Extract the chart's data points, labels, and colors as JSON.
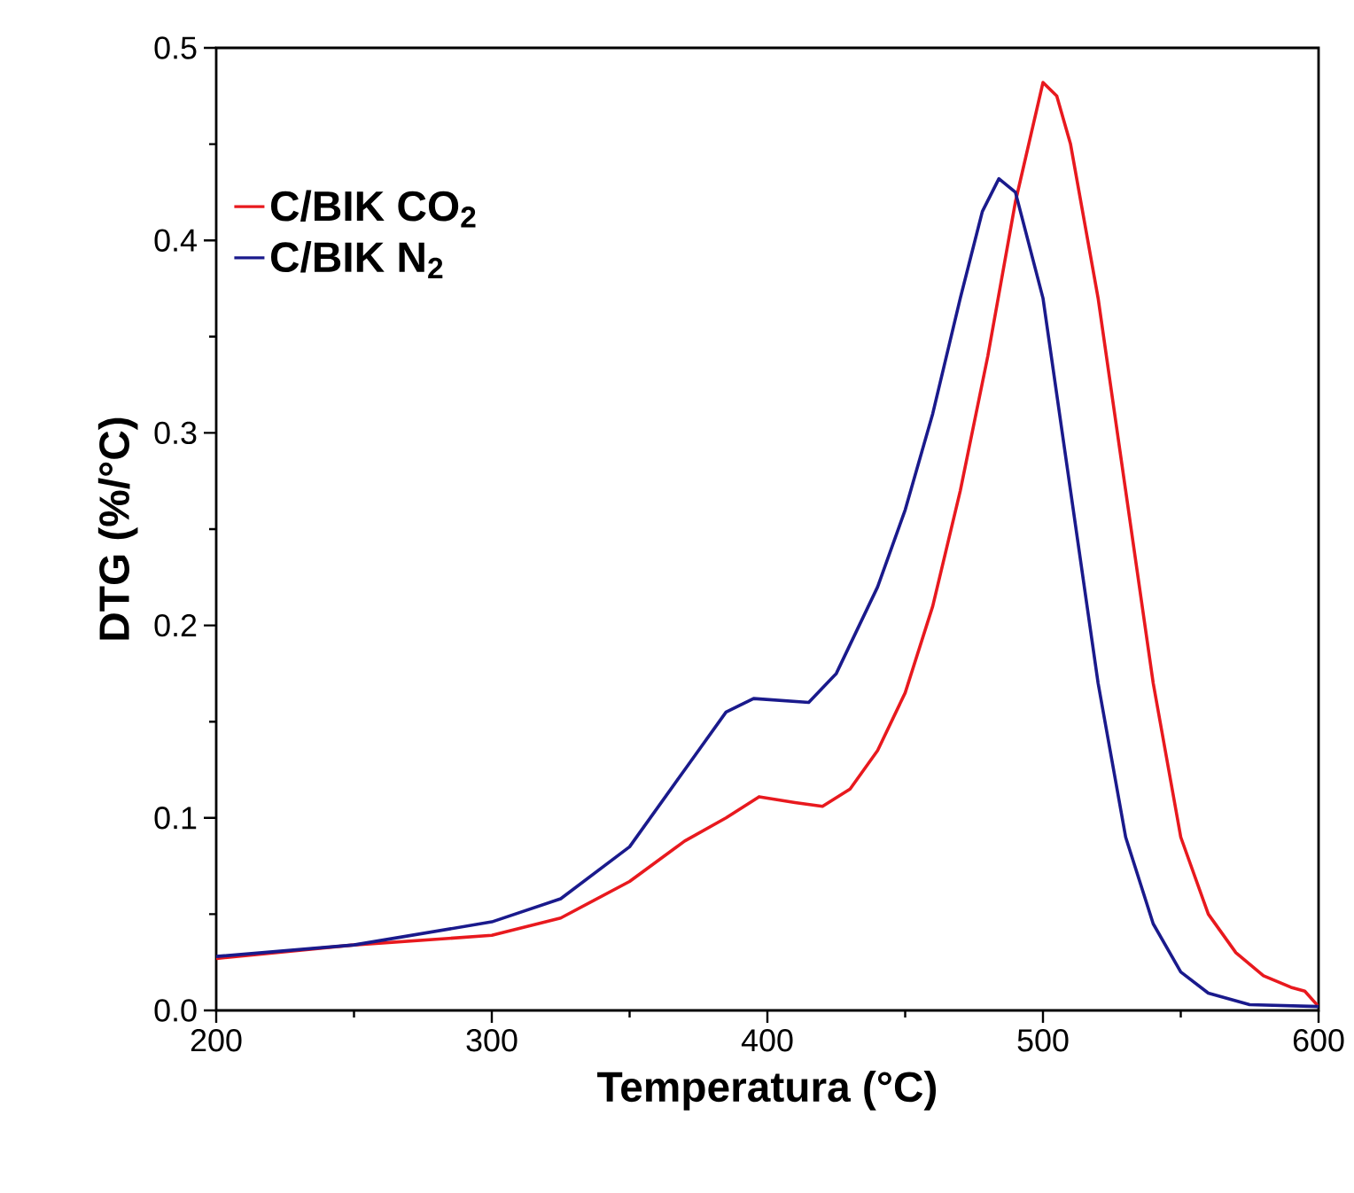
{
  "chart_data": {
    "type": "line",
    "xlabel": "Temperatura (°C)",
    "ylabel": "DTG (%/°C)",
    "xlim": [
      200,
      600
    ],
    "xticks": [
      200,
      300,
      400,
      500,
      600
    ],
    "ylim": [
      0,
      0.5
    ],
    "yticks": [
      {
        "value": 0,
        "label": "0.0"
      },
      0.1,
      0.2,
      0.3,
      0.4,
      0.5
    ],
    "legend": "top left",
    "grid": false,
    "marker": "none",
    "line_style": "solid",
    "series": [
      {
        "name": "C/BIK CO$_{2}$",
        "color": "#e8191e",
        "x": [
          200,
          250,
          300,
          325,
          350,
          370,
          385,
          397,
          410,
          420,
          430,
          440,
          450,
          460,
          470,
          480,
          490,
          500,
          505,
          510,
          520,
          530,
          540,
          550,
          560,
          570,
          580,
          590,
          595,
          600
        ],
        "values": [
          0.027,
          0.034,
          0.039,
          0.048,
          0.067,
          0.088,
          0.1,
          0.111,
          0.108,
          0.106,
          0.115,
          0.135,
          0.165,
          0.21,
          0.27,
          0.34,
          0.42,
          0.482,
          0.475,
          0.45,
          0.37,
          0.27,
          0.17,
          0.09,
          0.05,
          0.03,
          0.018,
          0.012,
          0.01,
          0.002
        ]
      },
      {
        "name": "C/BIK N$_{2}$",
        "color": "#1a1a8c",
        "x": [
          200,
          250,
          300,
          325,
          350,
          370,
          385,
          395,
          405,
          415,
          425,
          440,
          450,
          460,
          470,
          478,
          484,
          490,
          500,
          510,
          520,
          530,
          540,
          550,
          560,
          575,
          600
        ],
        "values": [
          0.028,
          0.034,
          0.046,
          0.058,
          0.085,
          0.125,
          0.155,
          0.162,
          0.161,
          0.16,
          0.175,
          0.22,
          0.26,
          0.31,
          0.37,
          0.415,
          0.432,
          0.425,
          0.37,
          0.27,
          0.17,
          0.09,
          0.045,
          0.02,
          0.009,
          0.003,
          0.002
        ]
      }
    ]
  }
}
